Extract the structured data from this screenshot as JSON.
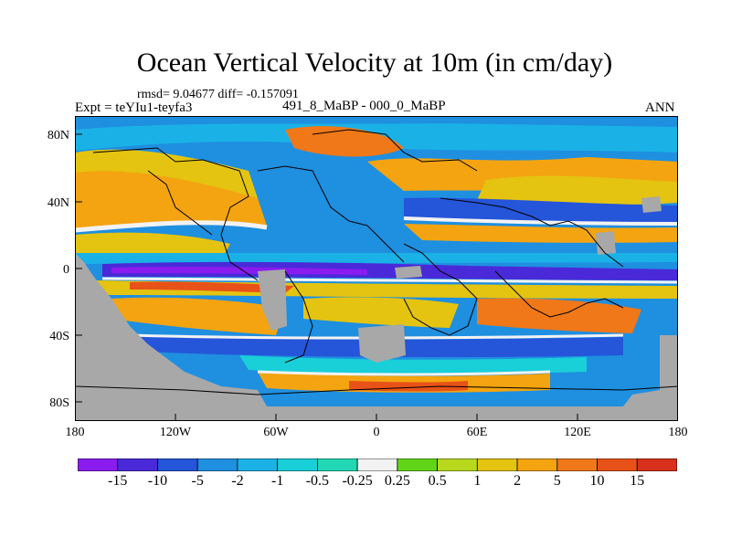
{
  "title": "Ocean Vertical Velocity at 10m (in cm/day)",
  "stats": "rmsd= 9.04677 diff= -0.157091",
  "experiment": "Expt = teYIu1-teyfa3",
  "difference_label": "491_8_MaBP - 000_0_MaBP",
  "season": "ANN",
  "map": {
    "lon_range": [
      -180,
      180
    ],
    "lat_range": [
      -90,
      90
    ],
    "land_color": "#a8a8a8",
    "lat_ticks": [
      "80N",
      "40N",
      "0",
      "40S",
      "80S"
    ],
    "lon_ticks": [
      "180",
      "120W",
      "60W",
      "0",
      "60E",
      "120E",
      "180"
    ]
  },
  "colorbar": {
    "labels": [
      "-15",
      "-10",
      "-5",
      "-2",
      "-1",
      "-0.5",
      "-0.25",
      "0.25",
      "0.5",
      "1",
      "2",
      "5",
      "10",
      "15"
    ],
    "colors": [
      "#8a1cf0",
      "#4a2ad8",
      "#2555d9",
      "#1f8fe0",
      "#1ab2e6",
      "#19cfd8",
      "#22d8b4",
      "#f2f2f2",
      "#62d418",
      "#b8d81e",
      "#e4c410",
      "#f4a410",
      "#f07818",
      "#e85218",
      "#d8301a"
    ]
  }
}
